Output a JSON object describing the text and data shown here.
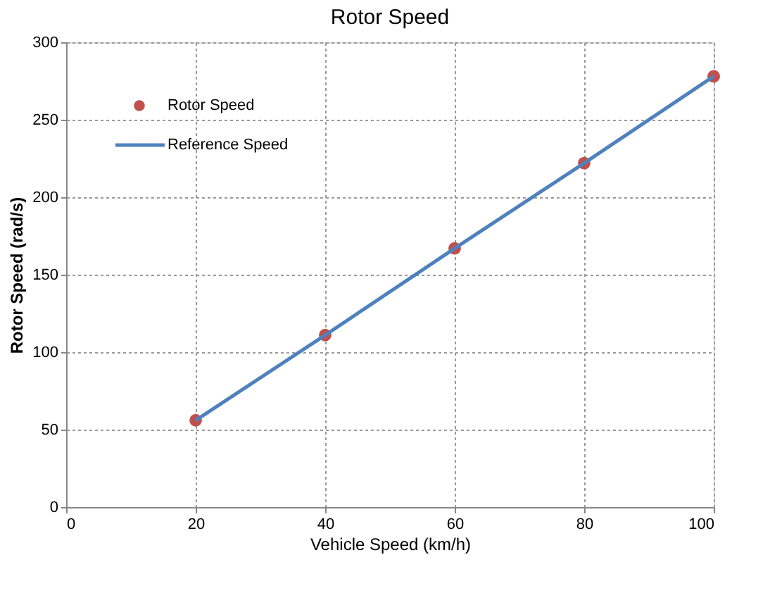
{
  "chart_data": {
    "type": "line",
    "title": "Rotor Speed",
    "xlabel": "Vehicle Speed (km/h)",
    "ylabel": "Rotor Speed (rad/s)",
    "x": [
      20,
      40,
      60,
      80,
      100
    ],
    "series": [
      {
        "name": "Rotor Speed",
        "type": "scatter",
        "color": "#c0504d",
        "marker": "circle",
        "values": [
          56,
          111,
          167,
          222,
          278
        ]
      },
      {
        "name": "Reference Speed",
        "color": "#4f81bd",
        "line_style": "solid",
        "values": [
          56,
          111,
          167,
          222,
          278
        ]
      }
    ],
    "xlim": [
      0,
      100
    ],
    "xticks": [
      0,
      20,
      40,
      60,
      80,
      100
    ],
    "ylim": [
      0,
      300
    ],
    "yticks": [
      0,
      50,
      100,
      150,
      200,
      250,
      300
    ],
    "grid": true,
    "legend": "top left"
  }
}
